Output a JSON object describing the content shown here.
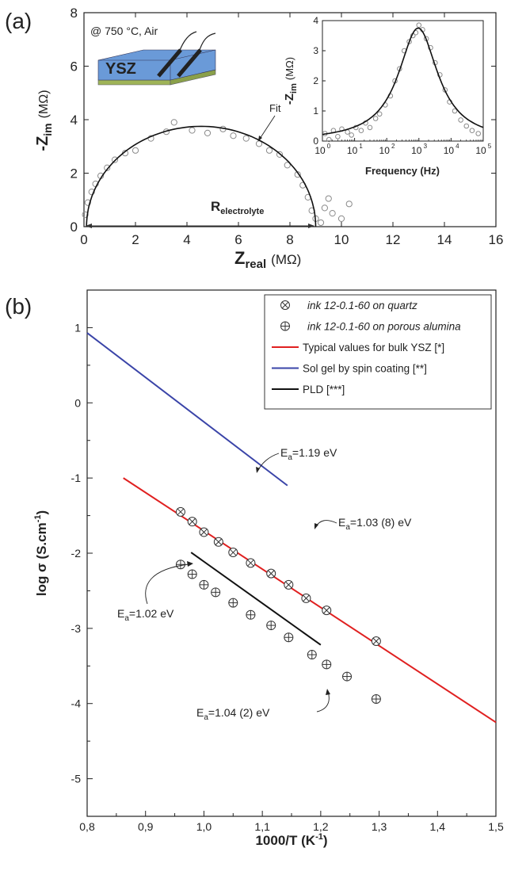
{
  "chart_data": [
    {
      "panel": "(a)",
      "type": "scatter",
      "annotation": "@ 750 °C, Air",
      "sample_label": "YSZ",
      "fit_label": "Fit",
      "resistance_label": "R",
      "resistance_sub": "electrolyte",
      "xlabel": "Z",
      "xlabel_sub": "real",
      "xlabel_unit": "(MΩ)",
      "ylabel": "-Z",
      "ylabel_sub": "im",
      "ylabel_unit": "(MΩ)",
      "xlim": [
        0,
        16
      ],
      "ylim": [
        0,
        8
      ],
      "xticks": [
        "0",
        "2",
        "4",
        "6",
        "8",
        "10",
        "12",
        "14",
        "16"
      ],
      "yticks": [
        "0",
        "2",
        "4",
        "6",
        "8"
      ],
      "points": [
        {
          "x": 0.05,
          "y": 0.45
        },
        {
          "x": 0.15,
          "y": 0.9
        },
        {
          "x": 0.3,
          "y": 1.3
        },
        {
          "x": 0.45,
          "y": 1.6
        },
        {
          "x": 0.65,
          "y": 1.9
        },
        {
          "x": 0.9,
          "y": 2.2
        },
        {
          "x": 1.2,
          "y": 2.5
        },
        {
          "x": 1.6,
          "y": 2.75
        },
        {
          "x": 2.0,
          "y": 2.85
        },
        {
          "x": 2.6,
          "y": 3.3
        },
        {
          "x": 3.2,
          "y": 3.55
        },
        {
          "x": 3.5,
          "y": 3.9
        },
        {
          "x": 4.2,
          "y": 3.6
        },
        {
          "x": 4.8,
          "y": 3.5
        },
        {
          "x": 5.4,
          "y": 3.65
        },
        {
          "x": 5.8,
          "y": 3.4
        },
        {
          "x": 6.3,
          "y": 3.3
        },
        {
          "x": 6.8,
          "y": 3.1
        },
        {
          "x": 7.2,
          "y": 2.85
        },
        {
          "x": 7.6,
          "y": 2.7
        },
        {
          "x": 7.9,
          "y": 2.3
        },
        {
          "x": 8.3,
          "y": 1.95
        },
        {
          "x": 8.5,
          "y": 1.55
        },
        {
          "x": 8.7,
          "y": 1.1
        },
        {
          "x": 8.85,
          "y": 0.6
        },
        {
          "x": 9.0,
          "y": 0.3
        },
        {
          "x": 9.2,
          "y": 0.15
        },
        {
          "x": 9.35,
          "y": 0.7
        },
        {
          "x": 9.5,
          "y": 1.05
        },
        {
          "x": 9.65,
          "y": 0.5
        },
        {
          "x": 10.0,
          "y": 0.3
        },
        {
          "x": 10.3,
          "y": 0.85
        }
      ],
      "fit": {
        "center": 4.55,
        "radius_x": 4.45,
        "radius_y": 3.75
      },
      "inset": {
        "type": "line",
        "xlabel": "Frequency (Hz)",
        "ylabel": "-Z",
        "ylabel_sub": "im",
        "ylabel_unit": "(MΩ)",
        "xscale": "log",
        "xlim": [
          1,
          100000
        ],
        "ylim": [
          0,
          4
        ],
        "yticks": [
          "0",
          "1",
          "2",
          "3",
          "4"
        ],
        "xticks": [
          "10",
          "10",
          "10",
          "10",
          "10",
          "10"
        ],
        "xtick_exponents": [
          "0",
          "1",
          "2",
          "3",
          "4",
          "5"
        ],
        "points": [
          {
            "x": 1.2,
            "y": 0.25
          },
          {
            "x": 1.6,
            "y": 0.05
          },
          {
            "x": 2.2,
            "y": 0.35
          },
          {
            "x": 3,
            "y": 0.15
          },
          {
            "x": 4,
            "y": 0.4
          },
          {
            "x": 6,
            "y": 0.3
          },
          {
            "x": 8,
            "y": 0.2
          },
          {
            "x": 11,
            "y": 0.45
          },
          {
            "x": 16,
            "y": 0.35
          },
          {
            "x": 22,
            "y": 0.6
          },
          {
            "x": 30,
            "y": 0.45
          },
          {
            "x": 45,
            "y": 0.75
          },
          {
            "x": 60,
            "y": 0.9
          },
          {
            "x": 90,
            "y": 1.2
          },
          {
            "x": 130,
            "y": 1.5
          },
          {
            "x": 180,
            "y": 2.0
          },
          {
            "x": 250,
            "y": 2.4
          },
          {
            "x": 350,
            "y": 3.0
          },
          {
            "x": 500,
            "y": 3.3
          },
          {
            "x": 650,
            "y": 3.5
          },
          {
            "x": 800,
            "y": 3.6
          },
          {
            "x": 1000,
            "y": 3.85
          },
          {
            "x": 1300,
            "y": 3.7
          },
          {
            "x": 1700,
            "y": 3.4
          },
          {
            "x": 2300,
            "y": 3.1
          },
          {
            "x": 3200,
            "y": 2.6
          },
          {
            "x": 4500,
            "y": 2.2
          },
          {
            "x": 6500,
            "y": 1.7
          },
          {
            "x": 9000,
            "y": 1.3
          },
          {
            "x": 13000,
            "y": 1.0
          },
          {
            "x": 20000,
            "y": 0.7
          },
          {
            "x": 30000,
            "y": 0.5
          },
          {
            "x": 45000,
            "y": 0.35
          },
          {
            "x": 70000,
            "y": 0.25
          }
        ],
        "fit_peak": {
          "f0": 950,
          "height": 3.75,
          "width_decades": 0.75
        }
      }
    },
    {
      "panel": "(b)",
      "type": "scatter",
      "xlabel": "1000/T (K",
      "xlabel_sup": "-1",
      "xlabel_end": ")",
      "ylabel": "log σ (S.cm",
      "ylabel_sup": "-1",
      "ylabel_end": ")",
      "xlim": [
        0.8,
        1.5
      ],
      "ylim": [
        -5.5,
        1.5
      ],
      "xticks": [
        "0,8",
        "0,9",
        "1,0",
        "1,1",
        "1,2",
        "1,3",
        "1,4",
        "1,5"
      ],
      "yticks": [
        "1",
        "0",
        "-1",
        "-2",
        "-3",
        "-4",
        "-5"
      ],
      "legend_position": "top-right",
      "legend": [
        {
          "label": "ink 12-0.1-60 on quartz",
          "marker": "x-circle"
        },
        {
          "label": "ink 12-0.1-60 on porous alumina",
          "marker": "plus-circle"
        },
        {
          "label": "Typical values for bulk YSZ [*]",
          "color": "#e02020"
        },
        {
          "label": "Sol gel by spin coating [**]",
          "color": "#3a44a8"
        },
        {
          "label": "PLD [***]",
          "color": "#111111"
        }
      ],
      "series": [
        {
          "name": "ink 12-0.1-60 on quartz",
          "x": [
            0.96,
            0.98,
            1.0,
            1.025,
            1.05,
            1.08,
            1.115,
            1.145,
            1.175,
            1.21,
            1.295
          ],
          "y": [
            -1.45,
            -1.58,
            -1.72,
            -1.85,
            -1.99,
            -2.13,
            -2.27,
            -2.42,
            -2.6,
            -2.76,
            -3.17
          ]
        },
        {
          "name": "ink 12-0.1-60 on porous alumina",
          "x": [
            0.96,
            0.98,
            1.0,
            1.02,
            1.05,
            1.08,
            1.115,
            1.145,
            1.185,
            1.21,
            1.245,
            1.295
          ],
          "y": [
            -2.15,
            -2.28,
            -2.42,
            -2.52,
            -2.66,
            -2.82,
            -2.96,
            -3.12,
            -3.35,
            -3.48,
            -3.64,
            -3.94
          ]
        }
      ],
      "lines": [
        {
          "name": "Typical values for bulk YSZ [*]",
          "color": "#e02020",
          "x": [
            0.862,
            1.5
          ],
          "y": [
            -1.0,
            -4.25
          ]
        },
        {
          "name": "Sol gel by spin coating [**]",
          "color": "#3a44a8",
          "x": [
            0.8,
            1.143
          ],
          "y": [
            0.93,
            -1.1
          ]
        },
        {
          "name": "PLD [***]",
          "color": "#111111",
          "x": [
            0.978,
            1.2
          ],
          "y": [
            -1.99,
            -3.22
          ]
        }
      ],
      "annotations": [
        {
          "text": "E",
          "sub": "a",
          "rest": "=1.19 eV"
        },
        {
          "text": "E",
          "sub": "a",
          "rest": "=1.03 (8) eV"
        },
        {
          "text": "E",
          "sub": "a",
          "rest": "=1.02 eV"
        },
        {
          "text": "E",
          "sub": "a",
          "rest": "=1.04 (2) eV"
        }
      ]
    }
  ]
}
